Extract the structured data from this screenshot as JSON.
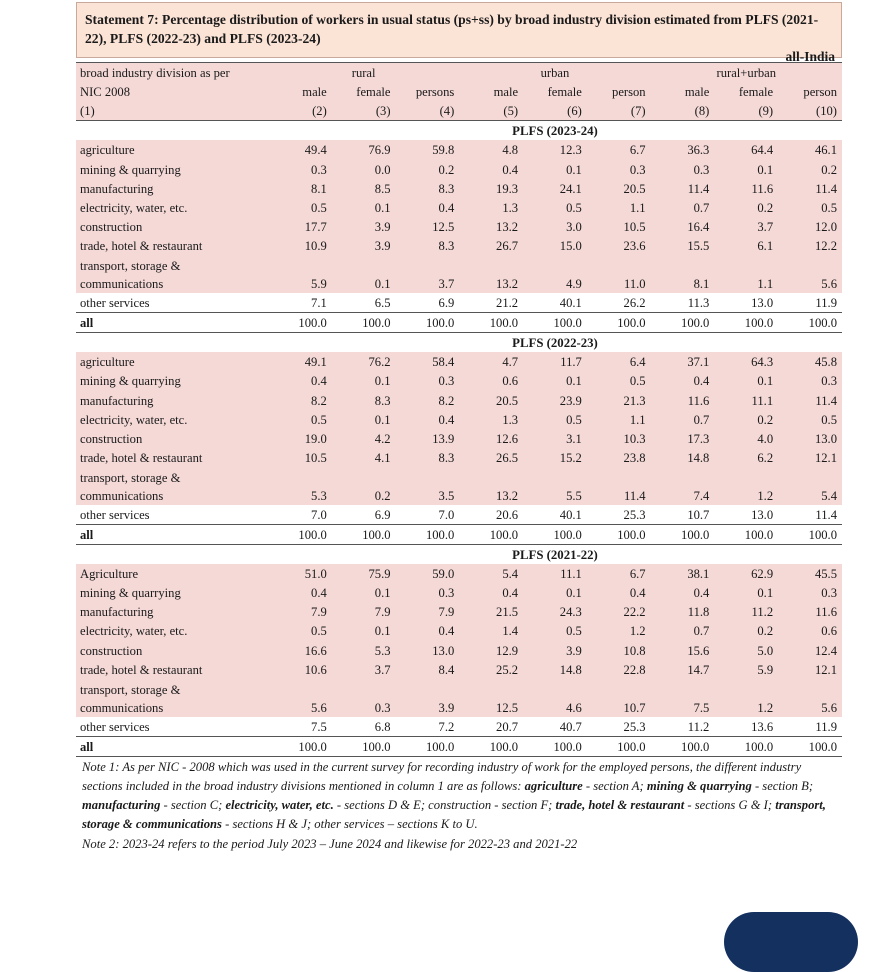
{
  "title": "Statement 7: Percentage distribution of workers in usual status (ps+ss) by broad industry division estimated from PLFS (2021-22), PLFS (2022-23) and PLFS (2023-24)",
  "scope": "all-India",
  "header": {
    "col1_line1": "broad industry division as per",
    "col1_line2": "NIC 2008",
    "col1_num": "(1)",
    "groups": [
      "rural",
      "urban",
      "rural+urban"
    ],
    "subcols": [
      "male",
      "female",
      "persons",
      "male",
      "female",
      "person",
      "male",
      "female",
      "person"
    ],
    "colnums": [
      "(2)",
      "(3)",
      "(4)",
      "(5)",
      "(6)",
      "(7)",
      "(8)",
      "(9)",
      "(10)"
    ]
  },
  "sections": [
    {
      "label": "PLFS (2023-24)",
      "rows": [
        {
          "name": "agriculture",
          "values": [
            "49.4",
            "76.9",
            "59.8",
            "4.8",
            "12.3",
            "6.7",
            "36.3",
            "64.4",
            "46.1"
          ]
        },
        {
          "name": "mining & quarrying",
          "values": [
            "0.3",
            "0.0",
            "0.2",
            "0.4",
            "0.1",
            "0.3",
            "0.3",
            "0.1",
            "0.2"
          ]
        },
        {
          "name": "manufacturing",
          "values": [
            "8.1",
            "8.5",
            "8.3",
            "19.3",
            "24.1",
            "20.5",
            "11.4",
            "11.6",
            "11.4"
          ]
        },
        {
          "name": "electricity, water, etc.",
          "values": [
            "0.5",
            "0.1",
            "0.4",
            "1.3",
            "0.5",
            "1.1",
            "0.7",
            "0.2",
            "0.5"
          ]
        },
        {
          "name": "construction",
          "values": [
            "17.7",
            "3.9",
            "12.5",
            "13.2",
            "3.0",
            "10.5",
            "16.4",
            "3.7",
            "12.0"
          ]
        },
        {
          "name": "trade, hotel & restaurant",
          "values": [
            "10.9",
            "3.9",
            "8.3",
            "26.7",
            "15.0",
            "23.6",
            "15.5",
            "6.1",
            "12.2"
          ]
        },
        {
          "name": "transport, storage & communications",
          "values": [
            "5.9",
            "0.1",
            "3.7",
            "13.2",
            "4.9",
            "11.0",
            "8.1",
            "1.1",
            "5.6"
          ]
        },
        {
          "name": "other services",
          "values": [
            "7.1",
            "6.5",
            "6.9",
            "21.2",
            "40.1",
            "26.2",
            "11.3",
            "13.0",
            "11.9"
          ]
        }
      ],
      "all": {
        "name": "all",
        "values": [
          "100.0",
          "100.0",
          "100.0",
          "100.0",
          "100.0",
          "100.0",
          "100.0",
          "100.0",
          "100.0"
        ]
      }
    },
    {
      "label": "PLFS (2022-23)",
      "rows": [
        {
          "name": "agriculture",
          "values": [
            "49.1",
            "76.2",
            "58.4",
            "4.7",
            "11.7",
            "6.4",
            "37.1",
            "64.3",
            "45.8"
          ]
        },
        {
          "name": "mining & quarrying",
          "values": [
            "0.4",
            "0.1",
            "0.3",
            "0.6",
            "0.1",
            "0.5",
            "0.4",
            "0.1",
            "0.3"
          ]
        },
        {
          "name": "manufacturing",
          "values": [
            "8.2",
            "8.3",
            "8.2",
            "20.5",
            "23.9",
            "21.3",
            "11.6",
            "11.1",
            "11.4"
          ]
        },
        {
          "name": "electricity, water, etc.",
          "values": [
            "0.5",
            "0.1",
            "0.4",
            "1.3",
            "0.5",
            "1.1",
            "0.7",
            "0.2",
            "0.5"
          ]
        },
        {
          "name": "construction",
          "values": [
            "19.0",
            "4.2",
            "13.9",
            "12.6",
            "3.1",
            "10.3",
            "17.3",
            "4.0",
            "13.0"
          ]
        },
        {
          "name": "trade, hotel & restaurant",
          "values": [
            "10.5",
            "4.1",
            "8.3",
            "26.5",
            "15.2",
            "23.8",
            "14.8",
            "6.2",
            "12.1"
          ]
        },
        {
          "name": "transport, storage & communications",
          "values": [
            "5.3",
            "0.2",
            "3.5",
            "13.2",
            "5.5",
            "11.4",
            "7.4",
            "1.2",
            "5.4"
          ]
        },
        {
          "name": "other services",
          "values": [
            "7.0",
            "6.9",
            "7.0",
            "20.6",
            "40.1",
            "25.3",
            "10.7",
            "13.0",
            "11.4"
          ]
        }
      ],
      "all": {
        "name": "all",
        "values": [
          "100.0",
          "100.0",
          "100.0",
          "100.0",
          "100.0",
          "100.0",
          "100.0",
          "100.0",
          "100.0"
        ]
      }
    },
    {
      "label": "PLFS (2021-22)",
      "rows": [
        {
          "name": "Agriculture",
          "values": [
            "51.0",
            "75.9",
            "59.0",
            "5.4",
            "11.1",
            "6.7",
            "38.1",
            "62.9",
            "45.5"
          ]
        },
        {
          "name": "mining & quarrying",
          "values": [
            "0.4",
            "0.1",
            "0.3",
            "0.4",
            "0.1",
            "0.4",
            "0.4",
            "0.1",
            "0.3"
          ]
        },
        {
          "name": "manufacturing",
          "values": [
            "7.9",
            "7.9",
            "7.9",
            "21.5",
            "24.3",
            "22.2",
            "11.8",
            "11.2",
            "11.6"
          ]
        },
        {
          "name": "electricity, water, etc.",
          "values": [
            "0.5",
            "0.1",
            "0.4",
            "1.4",
            "0.5",
            "1.2",
            "0.7",
            "0.2",
            "0.6"
          ]
        },
        {
          "name": "construction",
          "values": [
            "16.6",
            "5.3",
            "13.0",
            "12.9",
            "3.9",
            "10.8",
            "15.6",
            "5.0",
            "12.4"
          ]
        },
        {
          "name": "trade, hotel & restaurant",
          "values": [
            "10.6",
            "3.7",
            "8.4",
            "25.2",
            "14.8",
            "22.8",
            "14.7",
            "5.9",
            "12.1"
          ]
        },
        {
          "name": "transport, storage & communications",
          "values": [
            "5.6",
            "0.3",
            "3.9",
            "12.5",
            "4.6",
            "10.7",
            "7.5",
            "1.2",
            "5.6"
          ]
        },
        {
          "name": "other services",
          "values": [
            "7.5",
            "6.8",
            "7.2",
            "20.7",
            "40.7",
            "25.3",
            "11.2",
            "13.6",
            "11.9"
          ]
        }
      ],
      "all": {
        "name": "all",
        "values": [
          "100.0",
          "100.0",
          "100.0",
          "100.0",
          "100.0",
          "100.0",
          "100.0",
          "100.0",
          "100.0"
        ]
      }
    }
  ],
  "notes": {
    "note1_prefix": "Note 1:  As per NIC - 2008 which was used in the current survey for recording industry of work for the employed persons,  the different industry sections included in the broad industry divisions mentioned in column 1 are as follows:  ",
    "n_agri": "agriculture",
    "t_agri": "  - section A;  ",
    "n_mining": "mining & quarrying",
    "t_mining": "  - section B;  ",
    "n_manu": "manufacturing",
    "t_manu": " - section C;  ",
    "n_elec": "electricity, water, etc.",
    "t_elec": " - sections D & E; construction - section F;  ",
    "n_trade": "trade, hotel & restaurant",
    "t_trade": " -  sections G & I; ",
    "n_trans": "transport, storage & communications",
    "t_trans": " -  sections H & J;  other services – sections  K to U.",
    "note2": "Note 2: 2023-24 refers to the period July 2023 – June 2024 and likewise for 2022-23 and 2021-22"
  }
}
